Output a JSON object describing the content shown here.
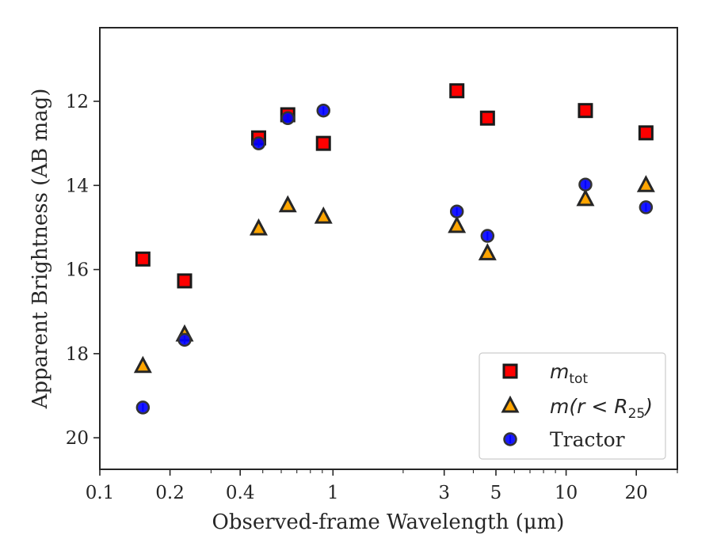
{
  "chart_data": {
    "type": "scatter",
    "title": "",
    "xlabel": "Observed-frame Wavelength (μm)",
    "ylabel": "Apparent Brightness (AB mag)",
    "xscale": "log",
    "yinverted": true,
    "xlim": [
      0.1,
      30
    ],
    "ylim": [
      20.75,
      10.25
    ],
    "xticks": [
      {
        "value": 0.1,
        "label": "0.1"
      },
      {
        "value": 0.2,
        "label": "0.2"
      },
      {
        "value": 0.4,
        "label": "0.4"
      },
      {
        "value": 1,
        "label": "1"
      },
      {
        "value": 3,
        "label": "3"
      },
      {
        "value": 5,
        "label": "5"
      },
      {
        "value": 10,
        "label": "10"
      },
      {
        "value": 20,
        "label": "20"
      }
    ],
    "yticks": [
      {
        "value": 12,
        "label": "12"
      },
      {
        "value": 14,
        "label": "14"
      },
      {
        "value": 16,
        "label": "16"
      },
      {
        "value": 18,
        "label": "18"
      },
      {
        "value": 20,
        "label": "20"
      }
    ],
    "legend_position": "lower-right",
    "series": [
      {
        "name": "m_tot",
        "legend_main": "m",
        "legend_sub": "tot",
        "marker": "square",
        "color": "#ff0000",
        "edge_color": "#1a1a1a",
        "errorbar_color": "#ff0000",
        "x": [
          0.153,
          0.231,
          0.48,
          0.64,
          0.91,
          3.4,
          4.6,
          12.1,
          22.0
        ],
        "y": [
          15.75,
          16.27,
          12.87,
          12.32,
          13.0,
          11.75,
          12.4,
          12.22,
          12.75
        ]
      },
      {
        "name": "m(r < R25)",
        "legend_main": "m(r < R",
        "legend_sub": "25",
        "legend_tail": ")",
        "marker": "triangle",
        "color": "#ffa500",
        "edge_color": "#262626",
        "errorbar_color": "#ffa500",
        "x": [
          0.153,
          0.231,
          0.48,
          0.64,
          0.91,
          3.4,
          4.6,
          12.1,
          22.0
        ],
        "y": [
          18.3,
          17.55,
          15.03,
          14.48,
          14.75,
          14.97,
          15.62,
          14.33,
          14.0
        ]
      },
      {
        "name": "Tractor",
        "legend_main": "Tractor",
        "marker": "circle",
        "color": "#0000ff",
        "edge_color": "#333333",
        "errorbar_color": "#0000ff",
        "x": [
          0.153,
          0.231,
          0.48,
          0.64,
          0.91,
          3.4,
          4.6,
          12.1,
          22.0
        ],
        "y": [
          19.28,
          17.67,
          13.0,
          12.4,
          12.22,
          14.62,
          15.2,
          13.98,
          14.52
        ]
      }
    ]
  }
}
